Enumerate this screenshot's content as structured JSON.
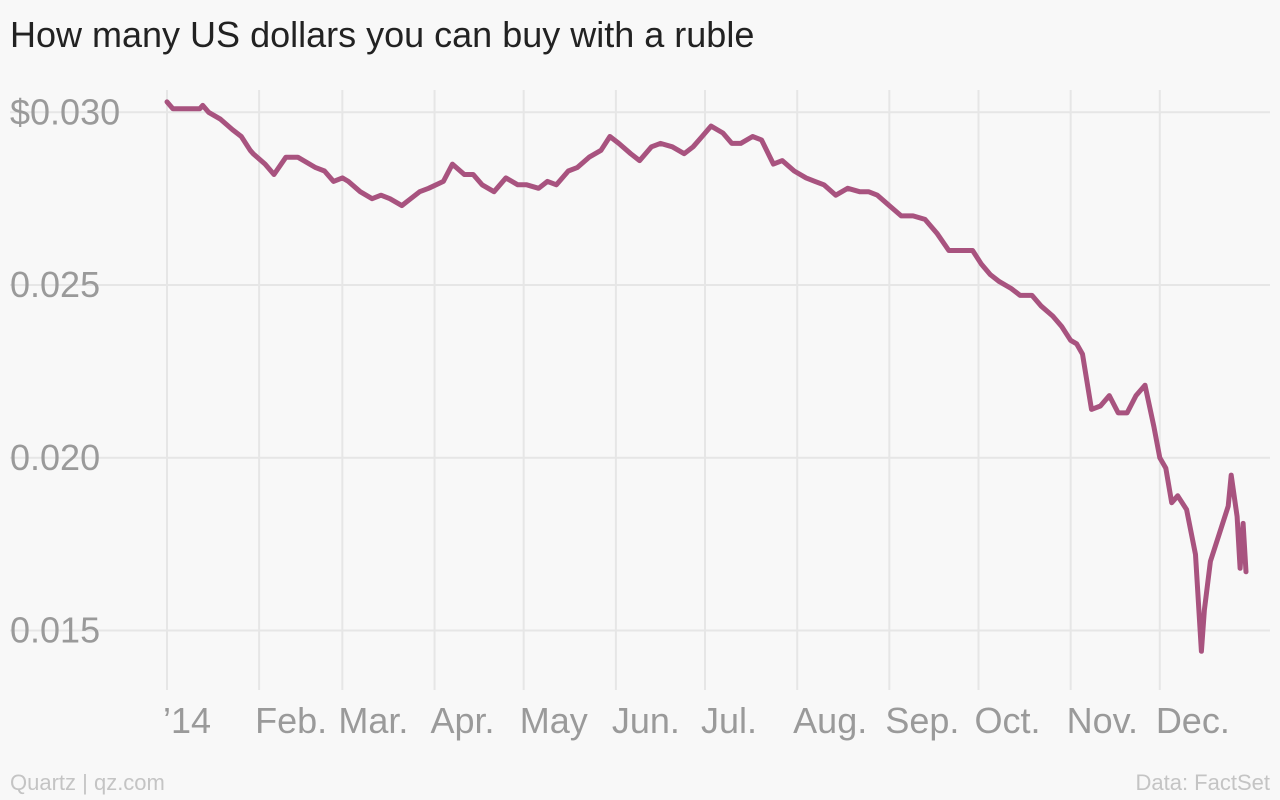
{
  "header": {
    "title": "How many US dollars you can buy with a ruble"
  },
  "footer": {
    "source_left": "Quartz | qz.com",
    "source_right": "Data: FactSet"
  },
  "colors": {
    "line": "#a8537f",
    "grid": "#e6e6e6",
    "tick_text": "#9a9a9a",
    "background": "#f8f8f8"
  },
  "chart_data": {
    "type": "line",
    "title": "How many US dollars you can buy with a ruble",
    "xlabel": "",
    "ylabel": "",
    "xlim": [
      "2014-01-01",
      "2014-12-31"
    ],
    "ylim": [
      0.0138,
      0.0305
    ],
    "grid": true,
    "y_ticks": [
      {
        "value": 0.03,
        "label": "$0.030"
      },
      {
        "value": 0.025,
        "label": "0.025"
      },
      {
        "value": 0.02,
        "label": "0.020"
      },
      {
        "value": 0.015,
        "label": "0.015"
      }
    ],
    "x_ticks": [
      {
        "date": "2014-01-01",
        "label": "’14"
      },
      {
        "date": "2014-02-01",
        "label": "Feb."
      },
      {
        "date": "2014-03-01",
        "label": "Mar."
      },
      {
        "date": "2014-04-01",
        "label": "Apr."
      },
      {
        "date": "2014-05-01",
        "label": "May"
      },
      {
        "date": "2014-06-01",
        "label": "Jun."
      },
      {
        "date": "2014-07-01",
        "label": "Jul."
      },
      {
        "date": "2014-08-01",
        "label": "Aug."
      },
      {
        "date": "2014-09-01",
        "label": "Sep."
      },
      {
        "date": "2014-10-01",
        "label": "Oct."
      },
      {
        "date": "2014-11-01",
        "label": "Nov."
      },
      {
        "date": "2014-12-01",
        "label": "Dec."
      }
    ],
    "series": [
      {
        "x": [
          "2014-01-01",
          "2014-01-03",
          "2014-01-05",
          "2014-01-09",
          "2014-01-12",
          "2014-01-13",
          "2014-01-15",
          "2014-01-19",
          "2014-01-23",
          "2014-01-26",
          "2014-01-29",
          "2014-01-30",
          "2014-02-03",
          "2014-02-06",
          "2014-02-10",
          "2014-02-14",
          "2014-02-20",
          "2014-02-23",
          "2014-02-26",
          "2014-03-01",
          "2014-03-03",
          "2014-03-07",
          "2014-03-11",
          "2014-03-14",
          "2014-03-17",
          "2014-03-21",
          "2014-03-24",
          "2014-03-27",
          "2014-03-30",
          "2014-04-04",
          "2014-04-07",
          "2014-04-11",
          "2014-04-14",
          "2014-04-17",
          "2014-04-21",
          "2014-04-25",
          "2014-04-29",
          "2014-05-02",
          "2014-05-06",
          "2014-05-09",
          "2014-05-12",
          "2014-05-16",
          "2014-05-19",
          "2014-05-23",
          "2014-05-27",
          "2014-05-30",
          "2014-06-02",
          "2014-06-06",
          "2014-06-09",
          "2014-06-13",
          "2014-06-16",
          "2014-06-20",
          "2014-06-24",
          "2014-06-27",
          "2014-06-30",
          "2014-07-03",
          "2014-07-07",
          "2014-07-10",
          "2014-07-13",
          "2014-07-17",
          "2014-07-20",
          "2014-07-24",
          "2014-07-27",
          "2014-07-31",
          "2014-08-04",
          "2014-08-07",
          "2014-08-10",
          "2014-08-14",
          "2014-08-18",
          "2014-08-22",
          "2014-08-25",
          "2014-08-28",
          "2014-09-01",
          "2014-09-05",
          "2014-09-09",
          "2014-09-13",
          "2014-09-17",
          "2014-09-21",
          "2014-09-25",
          "2014-09-29",
          "2014-10-02",
          "2014-10-05",
          "2014-10-08",
          "2014-10-12",
          "2014-10-15",
          "2014-10-19",
          "2014-10-22",
          "2014-10-26",
          "2014-10-29",
          "2014-11-01",
          "2014-11-03",
          "2014-11-05",
          "2014-11-08",
          "2014-11-11",
          "2014-11-14",
          "2014-11-17",
          "2014-11-20",
          "2014-11-23",
          "2014-11-26",
          "2014-11-29",
          "2014-12-01",
          "2014-12-03",
          "2014-12-05",
          "2014-12-07",
          "2014-12-10",
          "2014-12-13",
          "2014-12-15",
          "2014-12-16",
          "2014-12-18",
          "2014-12-21",
          "2014-12-24",
          "2014-12-25",
          "2014-12-27",
          "2014-12-28",
          "2014-12-29",
          "2014-12-30"
        ],
        "values": [
          0.0303,
          0.0301,
          0.0301,
          0.0301,
          0.0301,
          0.0302,
          0.03,
          0.0298,
          0.0295,
          0.0293,
          0.0289,
          0.0288,
          0.0285,
          0.0282,
          0.0287,
          0.0287,
          0.0284,
          0.0283,
          0.028,
          0.0281,
          0.028,
          0.0277,
          0.0275,
          0.0276,
          0.0275,
          0.0273,
          0.0275,
          0.0277,
          0.0278,
          0.028,
          0.0285,
          0.0282,
          0.0282,
          0.0279,
          0.0277,
          0.0281,
          0.0279,
          0.0279,
          0.0278,
          0.028,
          0.0279,
          0.0283,
          0.0284,
          0.0287,
          0.0289,
          0.0293,
          0.0291,
          0.0288,
          0.0286,
          0.029,
          0.0291,
          0.029,
          0.0288,
          0.029,
          0.0293,
          0.0296,
          0.0294,
          0.0291,
          0.0291,
          0.0293,
          0.0292,
          0.0285,
          0.0286,
          0.0283,
          0.0281,
          0.028,
          0.0279,
          0.0276,
          0.0278,
          0.0277,
          0.0277,
          0.0276,
          0.0273,
          0.027,
          0.027,
          0.0269,
          0.0265,
          0.026,
          0.026,
          0.026,
          0.0256,
          0.0253,
          0.0251,
          0.0249,
          0.0247,
          0.0247,
          0.0244,
          0.0241,
          0.0238,
          0.0234,
          0.0233,
          0.023,
          0.0214,
          0.0215,
          0.0218,
          0.0213,
          0.0213,
          0.0218,
          0.0221,
          0.0209,
          0.02,
          0.0197,
          0.0187,
          0.0189,
          0.0185,
          0.0172,
          0.0144,
          0.0156,
          0.017,
          0.0178,
          0.0186,
          0.0195,
          0.0183,
          0.0168,
          0.0181,
          0.0167
        ]
      }
    ]
  }
}
